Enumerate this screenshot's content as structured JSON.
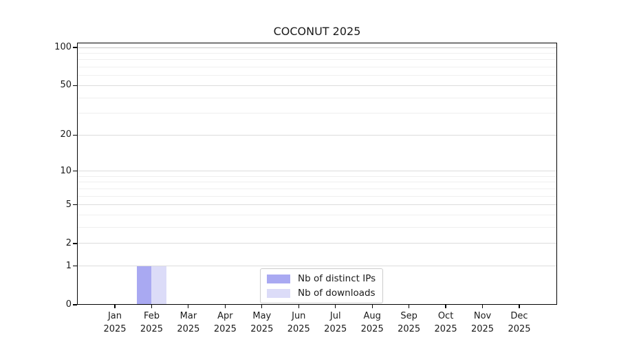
{
  "chart_data": {
    "type": "bar",
    "title": "COCONUT 2025",
    "categories": [
      "Jan",
      "Feb",
      "Mar",
      "Apr",
      "May",
      "Jun",
      "Jul",
      "Aug",
      "Sep",
      "Oct",
      "Nov",
      "Dec"
    ],
    "x_year_label": "2025",
    "series": [
      {
        "name": "Nb of distinct IPs",
        "color": "#a9a9f2",
        "values": [
          0,
          1,
          0,
          0,
          0,
          0,
          0,
          0,
          0,
          0,
          0,
          0
        ]
      },
      {
        "name": "Nb of downloads",
        "color": "#dcdcf8",
        "values": [
          0,
          1,
          0,
          0,
          0,
          0,
          0,
          0,
          0,
          0,
          0,
          0
        ]
      }
    ],
    "y_scale": "log1p",
    "ylim": [
      0,
      100
    ],
    "y_ticks": [
      0,
      1,
      2,
      5,
      10,
      20,
      50,
      100
    ],
    "y_minor_ticks": [
      3,
      4,
      6,
      7,
      8,
      9,
      30,
      40,
      60,
      70,
      80,
      90
    ],
    "grid": true,
    "legend_position": "lower center"
  },
  "colors": {
    "background": "#ffffff",
    "spine": "#000000",
    "grid_major": "#dcdcdc",
    "grid_minor": "#efefef",
    "grid_top": "#c9c9c9",
    "text": "#1a1a1a",
    "legend_border": "#cccccc"
  }
}
